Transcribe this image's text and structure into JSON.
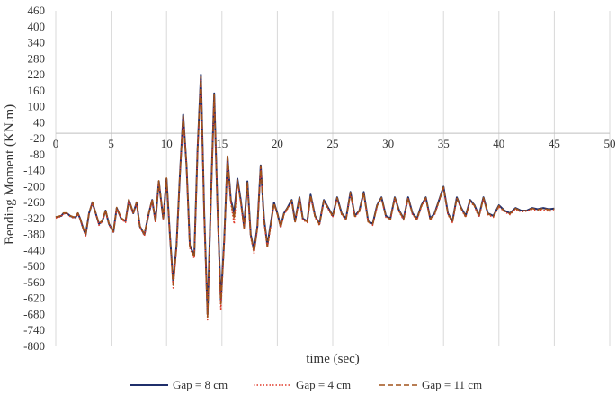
{
  "chart_data": {
    "type": "line",
    "xlabel": "time (sec)",
    "ylabel": "Bending Moment (KN.m)",
    "xlim": [
      0,
      50
    ],
    "ylim": [
      -800,
      460
    ],
    "xticks": [
      "0",
      "5",
      "10",
      "15",
      "20",
      "25",
      "30",
      "35",
      "40",
      "45",
      "50"
    ],
    "yticks": [
      "460",
      "400",
      "340",
      "280",
      "220",
      "160",
      "100",
      "40",
      "-20",
      "-80",
      "-140",
      "-200",
      "-260",
      "-320",
      "-380",
      "-440",
      "-500",
      "-560",
      "-620",
      "-680",
      "-740",
      "-800"
    ],
    "grid": "vertical",
    "legend_position": "bottom",
    "series": [
      {
        "name": "Gap = 8 cm",
        "color": "#1f2f6b",
        "style": "solid",
        "x": [
          0,
          0.5,
          0.7,
          1.0,
          1.3,
          1.6,
          1.8,
          2.0,
          2.2,
          2.5,
          2.7,
          3.0,
          3.3,
          3.6,
          3.9,
          4.2,
          4.5,
          4.8,
          5.2,
          5.5,
          5.9,
          6.3,
          6.6,
          7.0,
          7.3,
          7.6,
          8.0,
          8.4,
          8.7,
          9.0,
          9.3,
          9.7,
          10.0,
          10.3,
          10.6,
          10.9,
          11.2,
          11.5,
          11.8,
          12.1,
          12.5,
          12.8,
          13.1,
          13.4,
          13.7,
          14.0,
          14.3,
          14.6,
          14.9,
          15.2,
          15.5,
          15.8,
          16.1,
          16.4,
          16.7,
          17.0,
          17.3,
          17.6,
          17.9,
          18.2,
          18.5,
          18.8,
          19.1,
          19.4,
          19.7,
          20.0,
          20.3,
          20.6,
          20.9,
          21.3,
          21.6,
          22.0,
          22.3,
          22.7,
          23.0,
          23.4,
          23.8,
          24.2,
          24.6,
          25.0,
          25.4,
          25.8,
          26.2,
          26.6,
          27.0,
          27.4,
          27.8,
          28.2,
          28.6,
          29.0,
          29.4,
          29.8,
          30.2,
          30.6,
          31.0,
          31.4,
          31.8,
          32.2,
          32.6,
          33.0,
          33.4,
          33.8,
          34.2,
          34.6,
          35.0,
          35.4,
          35.8,
          36.2,
          36.6,
          37.0,
          37.4,
          37.8,
          38.2,
          38.6,
          39.0,
          39.5,
          40.0,
          40.5,
          41.0,
          41.5,
          42.0,
          42.5,
          43.0,
          43.5,
          44.0,
          44.5,
          45.0
        ],
        "y": [
          -315,
          -310,
          -300,
          -300,
          -310,
          -315,
          -315,
          -300,
          -320,
          -360,
          -380,
          -300,
          -260,
          -300,
          -340,
          -330,
          -290,
          -340,
          -370,
          -280,
          -320,
          -330,
          -250,
          -300,
          -260,
          -350,
          -380,
          -300,
          -250,
          -330,
          -180,
          -320,
          -170,
          -380,
          -560,
          -420,
          -160,
          70,
          -120,
          -420,
          -460,
          -60,
          220,
          -300,
          -680,
          -250,
          150,
          -280,
          -630,
          -400,
          -90,
          -250,
          -300,
          -170,
          -250,
          -350,
          -180,
          -380,
          -440,
          -350,
          -120,
          -320,
          -420,
          -340,
          -260,
          -300,
          -350,
          -300,
          -280,
          -250,
          -330,
          -240,
          -320,
          -330,
          -230,
          -310,
          -340,
          -250,
          -280,
          -310,
          -240,
          -300,
          -320,
          -220,
          -310,
          -290,
          -220,
          -330,
          -340,
          -270,
          -240,
          -310,
          -320,
          -240,
          -290,
          -320,
          -240,
          -300,
          -320,
          -270,
          -240,
          -320,
          -300,
          -250,
          -200,
          -300,
          -330,
          -240,
          -280,
          -310,
          -250,
          -270,
          -310,
          -240,
          -300,
          -310,
          -270,
          -290,
          -300,
          -280,
          -290,
          -290,
          -280,
          -285,
          -280,
          -285,
          -282
        ]
      },
      {
        "name": "Gap = 4 cm",
        "color": "#e03a2a",
        "style": "dotted",
        "x": [
          0,
          0.5,
          0.7,
          1.0,
          1.3,
          1.6,
          1.8,
          2.0,
          2.2,
          2.5,
          2.7,
          3.0,
          3.3,
          3.6,
          3.9,
          4.2,
          4.5,
          4.8,
          5.2,
          5.5,
          5.9,
          6.3,
          6.6,
          7.0,
          7.3,
          7.6,
          8.0,
          8.4,
          8.7,
          9.0,
          9.3,
          9.7,
          10.0,
          10.3,
          10.6,
          10.9,
          11.2,
          11.5,
          11.8,
          12.1,
          12.5,
          12.8,
          13.1,
          13.4,
          13.7,
          14.0,
          14.3,
          14.6,
          14.9,
          15.2,
          15.5,
          15.8,
          16.1,
          16.4,
          16.7,
          17.0,
          17.3,
          17.6,
          17.9,
          18.2,
          18.5,
          18.8,
          19.1,
          19.4,
          19.7,
          20.0,
          20.3,
          20.6,
          20.9,
          21.3,
          21.6,
          22.0,
          22.3,
          22.7,
          23.0,
          23.4,
          23.8,
          24.2,
          24.6,
          25.0,
          25.4,
          25.8,
          26.2,
          26.6,
          27.0,
          27.4,
          27.8,
          28.2,
          28.6,
          29.0,
          29.4,
          29.8,
          30.2,
          30.6,
          31.0,
          31.4,
          31.8,
          32.2,
          32.6,
          33.0,
          33.4,
          33.8,
          34.2,
          34.6,
          35.0,
          35.4,
          35.8,
          36.2,
          36.6,
          37.0,
          37.4,
          37.8,
          38.2,
          38.6,
          39.0,
          39.5,
          40.0,
          40.5,
          41.0,
          41.5,
          42.0,
          42.5,
          43.0,
          43.5,
          44.0,
          44.5,
          45.0
        ],
        "y": [
          -318,
          -312,
          -302,
          -302,
          -312,
          -318,
          -318,
          -302,
          -322,
          -362,
          -385,
          -302,
          -262,
          -302,
          -345,
          -332,
          -292,
          -342,
          -375,
          -282,
          -322,
          -335,
          -252,
          -302,
          -262,
          -352,
          -385,
          -302,
          -252,
          -335,
          -182,
          -325,
          -172,
          -385,
          -580,
          -430,
          -162,
          60,
          -120,
          -430,
          -470,
          -70,
          210,
          -310,
          -700,
          -260,
          140,
          -290,
          -660,
          -410,
          -100,
          -260,
          -340,
          -180,
          -260,
          -360,
          -190,
          -390,
          -450,
          -360,
          -125,
          -330,
          -430,
          -350,
          -265,
          -305,
          -355,
          -305,
          -285,
          -255,
          -335,
          -245,
          -325,
          -335,
          -235,
          -315,
          -345,
          -255,
          -285,
          -315,
          -245,
          -305,
          -325,
          -225,
          -315,
          -295,
          -225,
          -335,
          -345,
          -275,
          -245,
          -315,
          -325,
          -245,
          -295,
          -325,
          -245,
          -305,
          -325,
          -275,
          -245,
          -325,
          -305,
          -255,
          -205,
          -305,
          -335,
          -245,
          -285,
          -315,
          -255,
          -275,
          -315,
          -245,
          -305,
          -315,
          -275,
          -295,
          -305,
          -285,
          -295,
          -292,
          -285,
          -290,
          -288,
          -292,
          -290
        ]
      },
      {
        "name": "Gap = 11 cm",
        "color": "#a0521a",
        "style": "dashed",
        "x": [
          0,
          0.5,
          0.7,
          1.0,
          1.3,
          1.6,
          1.8,
          2.0,
          2.2,
          2.5,
          2.7,
          3.0,
          3.3,
          3.6,
          3.9,
          4.2,
          4.5,
          4.8,
          5.2,
          5.5,
          5.9,
          6.3,
          6.6,
          7.0,
          7.3,
          7.6,
          8.0,
          8.4,
          8.7,
          9.0,
          9.3,
          9.7,
          10.0,
          10.3,
          10.6,
          10.9,
          11.2,
          11.5,
          11.8,
          12.1,
          12.5,
          12.8,
          13.1,
          13.4,
          13.7,
          14.0,
          14.3,
          14.6,
          14.9,
          15.2,
          15.5,
          15.8,
          16.1,
          16.4,
          16.7,
          17.0,
          17.3,
          17.6,
          17.9,
          18.2,
          18.5,
          18.8,
          19.1,
          19.4,
          19.7,
          20.0,
          20.3,
          20.6,
          20.9,
          21.3,
          21.6,
          22.0,
          22.3,
          22.7,
          23.0,
          23.4,
          23.8,
          24.2,
          24.6,
          25.0,
          25.4,
          25.8,
          26.2,
          26.6,
          27.0,
          27.4,
          27.8,
          28.2,
          28.6,
          29.0,
          29.4,
          29.8,
          30.2,
          30.6,
          31.0,
          31.4,
          31.8,
          32.2,
          32.6,
          33.0,
          33.4,
          33.8,
          34.2,
          34.6,
          35.0,
          35.4,
          35.8,
          36.2,
          36.6,
          37.0,
          37.4,
          37.8,
          38.2,
          38.6,
          39.0,
          39.5,
          40.0,
          40.5,
          41.0,
          41.5,
          42.0,
          42.5,
          43.0,
          43.5,
          44.0,
          44.5,
          45.0
        ],
        "y": [
          -314,
          -309,
          -299,
          -299,
          -309,
          -314,
          -314,
          -299,
          -319,
          -358,
          -378,
          -299,
          -258,
          -298,
          -338,
          -328,
          -288,
          -338,
          -368,
          -278,
          -318,
          -328,
          -248,
          -298,
          -258,
          -348,
          -378,
          -298,
          -248,
          -328,
          -178,
          -318,
          -168,
          -378,
          -570,
          -425,
          -158,
          65,
          -118,
          -425,
          -465,
          -62,
          215,
          -305,
          -690,
          -255,
          145,
          -285,
          -640,
          -405,
          -80,
          -255,
          -320,
          -175,
          -255,
          -355,
          -185,
          -385,
          -445,
          -355,
          -122,
          -325,
          -425,
          -345,
          -262,
          -302,
          -352,
          -302,
          -282,
          -252,
          -332,
          -242,
          -322,
          -332,
          -232,
          -312,
          -342,
          -252,
          -282,
          -312,
          -242,
          -302,
          -322,
          -222,
          -312,
          -292,
          -222,
          -332,
          -342,
          -272,
          -242,
          -312,
          -322,
          -242,
          -292,
          -322,
          -242,
          -302,
          -322,
          -272,
          -242,
          -322,
          -302,
          -252,
          -202,
          -302,
          -332,
          -242,
          -282,
          -312,
          -252,
          -272,
          -312,
          -242,
          -302,
          -312,
          -272,
          -292,
          -302,
          -282,
          -292,
          -290,
          -282,
          -287,
          -282,
          -287,
          -284
        ]
      }
    ]
  }
}
